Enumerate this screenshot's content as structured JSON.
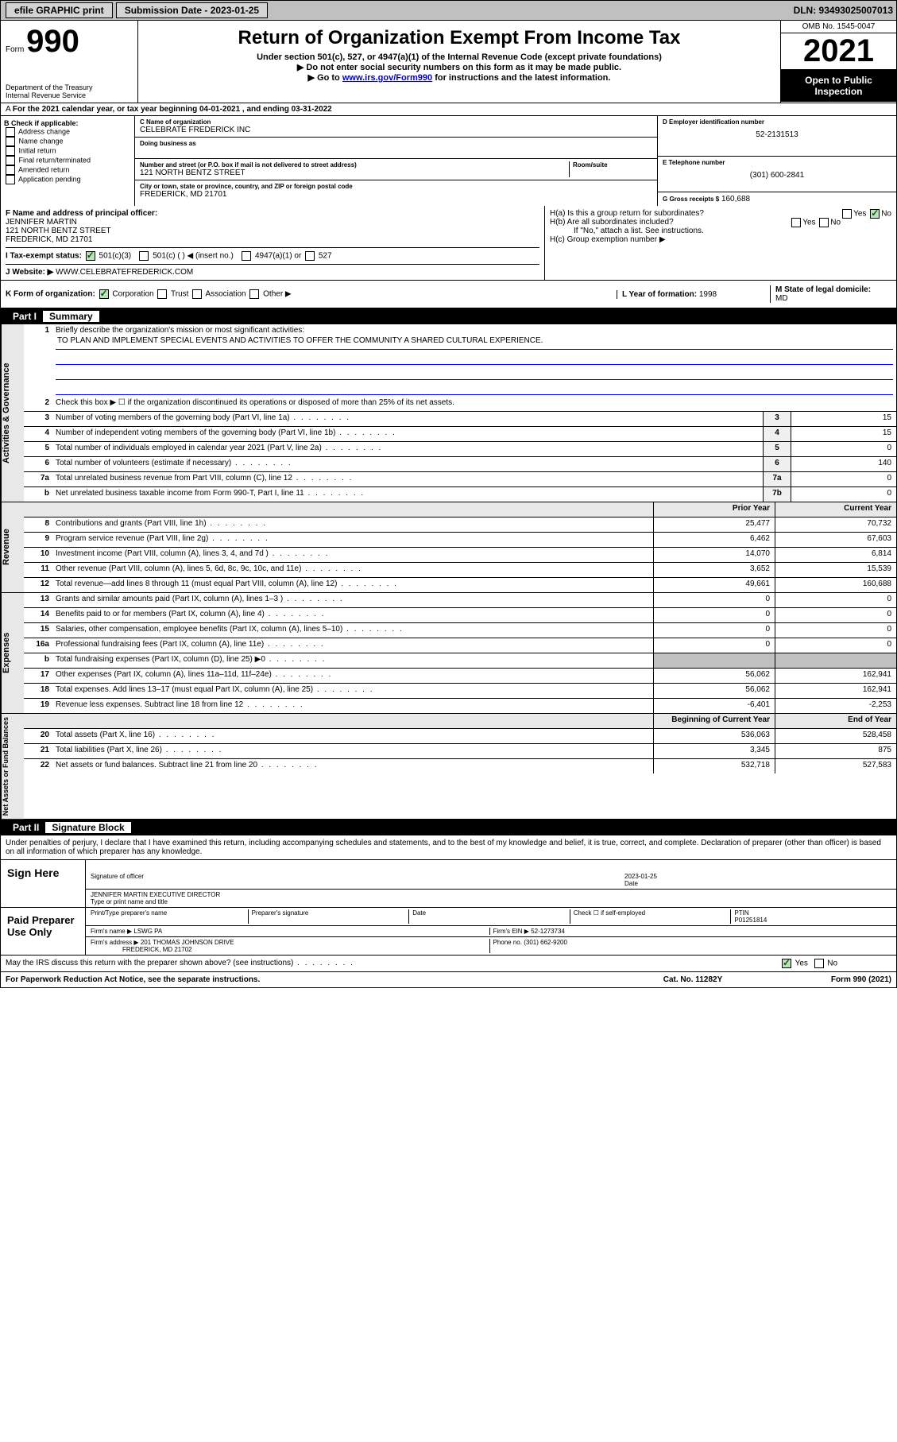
{
  "topbar": {
    "efile": "efile GRAPHIC print",
    "submission_label": "Submission Date - 2023-01-25",
    "dln": "DLN: 93493025007013"
  },
  "header": {
    "form_label": "Form",
    "form_number": "990",
    "dept": "Department of the Treasury",
    "irs": "Internal Revenue Service",
    "title": "Return of Organization Exempt From Income Tax",
    "subtitle": "Under section 501(c), 527, or 4947(a)(1) of the Internal Revenue Code (except private foundations)",
    "note1": "Do not enter social security numbers on this form as it may be made public.",
    "note2_prefix": "Go to ",
    "note2_link": "www.irs.gov/Form990",
    "note2_suffix": " for instructions and the latest information.",
    "omb": "OMB No. 1545-0047",
    "year": "2021",
    "open": "Open to Public Inspection"
  },
  "row_a": "For the 2021 calendar year, or tax year beginning 04-01-2021   , and ending 03-31-2022",
  "section_b": {
    "label": "B Check if applicable:",
    "items": [
      "Address change",
      "Name change",
      "Initial return",
      "Final return/terminated",
      "Amended return",
      "Application pending"
    ]
  },
  "section_c": {
    "name_label": "C Name of organization",
    "name": "CELEBRATE FREDERICK INC",
    "dba_label": "Doing business as",
    "addr_label": "Number and street (or P.O. box if mail is not delivered to street address)",
    "room_label": "Room/suite",
    "addr": "121 NORTH BENTZ STREET",
    "city_label": "City or town, state or province, country, and ZIP or foreign postal code",
    "city": "FREDERICK, MD  21701"
  },
  "section_d": {
    "label": "D Employer identification number",
    "val": "52-2131513"
  },
  "section_e": {
    "label": "E Telephone number",
    "val": "(301) 600-2841"
  },
  "section_g": {
    "label": "G Gross receipts $",
    "val": "160,688"
  },
  "section_f": {
    "label": "F  Name and address of principal officer:",
    "name": "JENNIFER MARTIN",
    "addr1": "121 NORTH BENTZ STREET",
    "addr2": "FREDERICK, MD  21701"
  },
  "section_h": {
    "ha": "H(a)  Is this a group return for subordinates?",
    "hb": "H(b)  Are all subordinates included?",
    "hb_note": "If \"No,\" attach a list. See instructions.",
    "hc": "H(c)  Group exemption number ▶",
    "yes": "Yes",
    "no": "No"
  },
  "row_i": {
    "label": "I   Tax-exempt status:",
    "opts": [
      "501(c)(3)",
      "501(c) (  ) ◀ (insert no.)",
      "4947(a)(1) or",
      "527"
    ]
  },
  "row_j": {
    "label": "J   Website: ▶",
    "val": "WWW.CELEBRATEFREDERICK.COM"
  },
  "row_k": {
    "label": "K Form of organization:",
    "opts": [
      "Corporation",
      "Trust",
      "Association",
      "Other ▶"
    ],
    "l_label": "L Year of formation:",
    "l_val": "1998",
    "m_label": "M State of legal domicile:",
    "m_val": "MD"
  },
  "part1": {
    "num": "Part I",
    "title": "Summary"
  },
  "governance": {
    "label": "Activities & Governance",
    "line1_label": "Briefly describe the organization's mission or most significant activities:",
    "line1_val": "TO PLAN AND IMPLEMENT SPECIAL EVENTS AND ACTIVITIES TO OFFER THE COMMUNITY A SHARED CULTURAL EXPERIENCE.",
    "line2": "Check this box ▶ ☐  if the organization discontinued its operations or disposed of more than 25% of its net assets.",
    "rows": [
      {
        "n": "3",
        "d": "Number of voting members of the governing body (Part VI, line 1a)",
        "box": "3",
        "v": "15"
      },
      {
        "n": "4",
        "d": "Number of independent voting members of the governing body (Part VI, line 1b)",
        "box": "4",
        "v": "15"
      },
      {
        "n": "5",
        "d": "Total number of individuals employed in calendar year 2021 (Part V, line 2a)",
        "box": "5",
        "v": "0"
      },
      {
        "n": "6",
        "d": "Total number of volunteers (estimate if necessary)",
        "box": "6",
        "v": "140"
      },
      {
        "n": "7a",
        "d": "Total unrelated business revenue from Part VIII, column (C), line 12",
        "box": "7a",
        "v": "0"
      },
      {
        "n": "b",
        "d": "Net unrelated business taxable income from Form 990-T, Part I, line 11",
        "box": "7b",
        "v": "0"
      }
    ]
  },
  "revenue": {
    "label": "Revenue",
    "h1": "Prior Year",
    "h2": "Current Year",
    "rows": [
      {
        "n": "8",
        "d": "Contributions and grants (Part VIII, line 1h)",
        "v1": "25,477",
        "v2": "70,732"
      },
      {
        "n": "9",
        "d": "Program service revenue (Part VIII, line 2g)",
        "v1": "6,462",
        "v2": "67,603"
      },
      {
        "n": "10",
        "d": "Investment income (Part VIII, column (A), lines 3, 4, and 7d )",
        "v1": "14,070",
        "v2": "6,814"
      },
      {
        "n": "11",
        "d": "Other revenue (Part VIII, column (A), lines 5, 6d, 8c, 9c, 10c, and 11e)",
        "v1": "3,652",
        "v2": "15,539"
      },
      {
        "n": "12",
        "d": "Total revenue—add lines 8 through 11 (must equal Part VIII, column (A), line 12)",
        "v1": "49,661",
        "v2": "160,688"
      }
    ]
  },
  "expenses": {
    "label": "Expenses",
    "rows": [
      {
        "n": "13",
        "d": "Grants and similar amounts paid (Part IX, column (A), lines 1–3 )",
        "v1": "0",
        "v2": "0"
      },
      {
        "n": "14",
        "d": "Benefits paid to or for members (Part IX, column (A), line 4)",
        "v1": "0",
        "v2": "0"
      },
      {
        "n": "15",
        "d": "Salaries, other compensation, employee benefits (Part IX, column (A), lines 5–10)",
        "v1": "0",
        "v2": "0"
      },
      {
        "n": "16a",
        "d": "Professional fundraising fees (Part IX, column (A), line 11e)",
        "v1": "0",
        "v2": "0"
      },
      {
        "n": "b",
        "d": "Total fundraising expenses (Part IX, column (D), line 25) ▶0",
        "v1": "",
        "v2": "",
        "shaded": true
      },
      {
        "n": "17",
        "d": "Other expenses (Part IX, column (A), lines 11a–11d, 11f–24e)",
        "v1": "56,062",
        "v2": "162,941"
      },
      {
        "n": "18",
        "d": "Total expenses. Add lines 13–17 (must equal Part IX, column (A), line 25)",
        "v1": "56,062",
        "v2": "162,941"
      },
      {
        "n": "19",
        "d": "Revenue less expenses. Subtract line 18 from line 12",
        "v1": "-6,401",
        "v2": "-2,253"
      }
    ]
  },
  "netassets": {
    "label": "Net Assets or Fund Balances",
    "h1": "Beginning of Current Year",
    "h2": "End of Year",
    "rows": [
      {
        "n": "20",
        "d": "Total assets (Part X, line 16)",
        "v1": "536,063",
        "v2": "528,458"
      },
      {
        "n": "21",
        "d": "Total liabilities (Part X, line 26)",
        "v1": "3,345",
        "v2": "875"
      },
      {
        "n": "22",
        "d": "Net assets or fund balances. Subtract line 21 from line 20",
        "v1": "532,718",
        "v2": "527,583"
      }
    ]
  },
  "part2": {
    "num": "Part II",
    "title": "Signature Block"
  },
  "sig": {
    "decl": "Under penalties of perjury, I declare that I have examined this return, including accompanying schedules and statements, and to the best of my knowledge and belief, it is true, correct, and complete. Declaration of preparer (other than officer) is based on all information of which preparer has any knowledge.",
    "sign_here": "Sign Here",
    "sig_officer": "Signature of officer",
    "date": "Date",
    "date_val": "2023-01-25",
    "name": "JENNIFER MARTIN  EXECUTIVE DIRECTOR",
    "name_label": "Type or print name and title",
    "paid": "Paid Preparer Use Only",
    "prep_name_label": "Print/Type preparer's name",
    "prep_sig_label": "Preparer's signature",
    "check_self": "Check ☐ if self-employed",
    "ptin_label": "PTIN",
    "ptin": "P01251814",
    "firm_name_label": "Firm's name    ▶",
    "firm_name": "LSWG PA",
    "firm_ein_label": "Firm's EIN ▶",
    "firm_ein": "52-1273734",
    "firm_addr_label": "Firm's address ▶",
    "firm_addr1": "201 THOMAS JOHNSON DRIVE",
    "firm_addr2": "FREDERICK, MD  21702",
    "phone_label": "Phone no.",
    "phone": "(301) 662-9200",
    "discuss": "May the IRS discuss this return with the preparer shown above? (see instructions)",
    "yes": "Yes",
    "no": "No"
  },
  "footer": {
    "left": "For Paperwork Reduction Act Notice, see the separate instructions.",
    "mid": "Cat. No. 11282Y",
    "right": "Form 990 (2021)"
  }
}
